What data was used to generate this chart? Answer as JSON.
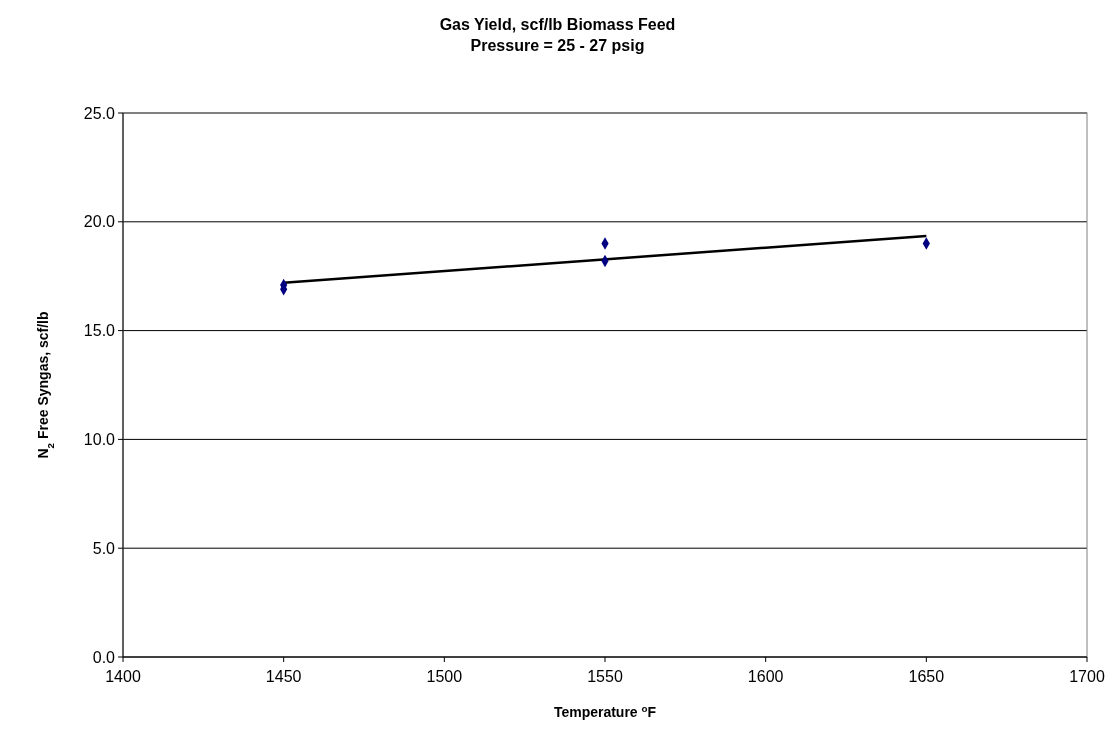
{
  "chart_data": {
    "type": "scatter",
    "title": "Gas Yield, scf/lb Biomass Feed",
    "subtitle": "Pressure = 25 - 27 psig",
    "xlabel": "Temperature $^{o}$F",
    "ylabel": "N$_{2}$ Free Syngas, scf/lb",
    "xlim": [
      1400,
      1700
    ],
    "xticks": [
      1400,
      1450,
      1500,
      1550,
      1600,
      1650,
      1700
    ],
    "ylim": [
      0,
      25
    ],
    "yticks": [
      {
        "value": 0,
        "label": "0.0"
      },
      {
        "value": 5,
        "label": "5.0"
      },
      {
        "value": 10,
        "label": "10.0"
      },
      {
        "value": 15,
        "label": "15.0"
      },
      {
        "value": 20,
        "label": "20.0"
      },
      {
        "value": 25,
        "label": "25.0"
      }
    ],
    "grid": "y",
    "marker": "diamond",
    "series": [
      {
        "color": "#000080",
        "x": [
          1450,
          1450,
          1550,
          1550,
          1650
        ],
        "values": [
          17.1,
          16.9,
          19.0,
          18.2,
          19.0
        ]
      },
      {
        "type": "line",
        "color": "#000000",
        "x": [
          1450,
          1650
        ],
        "values": [
          17.2,
          19.35
        ],
        "marker": "none",
        "line_style": "solid"
      }
    ]
  }
}
